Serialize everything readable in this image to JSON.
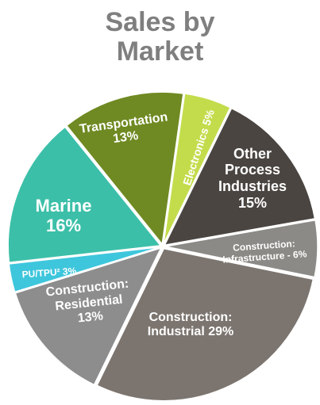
{
  "chart_data": {
    "type": "pie",
    "title": "Sales by Market",
    "categories": [
      "Electronics",
      "Other Process Industries",
      "Construction: Infrastructure -",
      "Construction: Industrial",
      "Construction: Residential",
      "PU/TPU²",
      "Marine",
      "Transportation"
    ],
    "values": [
      5,
      15,
      6,
      29,
      13,
      3,
      16,
      13
    ],
    "value_labels": [
      "5%",
      "15%",
      "6%",
      "29%",
      "13%",
      "3%",
      "16%",
      "13%"
    ],
    "colors": [
      "#c3dc4c",
      "#4a4541",
      "#8b8a86",
      "#7c756f",
      "#8d8d8d",
      "#3ec6dc",
      "#3cbfa8",
      "#6f8a22"
    ]
  }
}
